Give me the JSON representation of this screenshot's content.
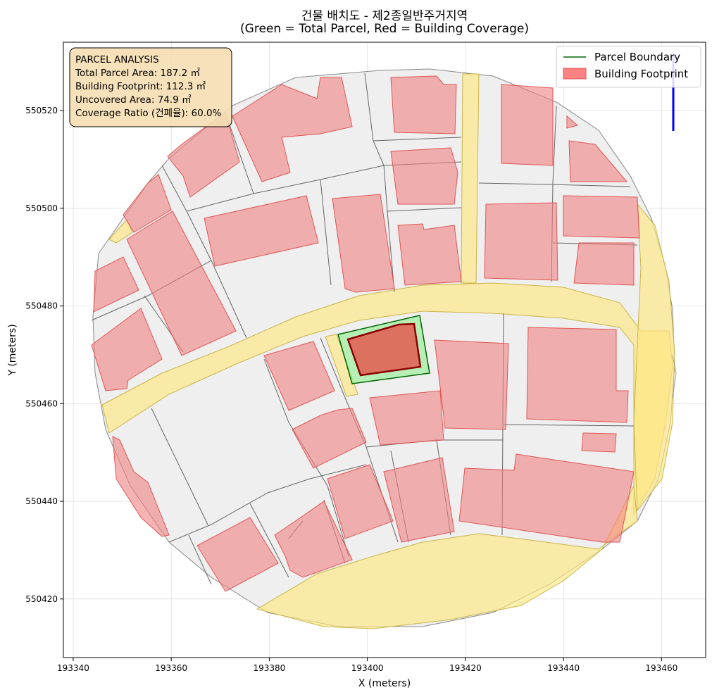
{
  "title_line1": "건물 배치도 - 제2종일반주거지역",
  "title_line2": "(Green = Total Parcel, Red = Building Coverage)",
  "xlabel": "X (meters)",
  "ylabel": "Y (meters)",
  "x_ticks": [
    "193340",
    "193360",
    "193380",
    "193400",
    "193420",
    "193440",
    "193460"
  ],
  "y_ticks": [
    "550520",
    "550500",
    "550480",
    "550460",
    "550440",
    "550420"
  ],
  "info_box": {
    "heading": "PARCEL ANALYSIS",
    "total_area": "Total Parcel Area: 187.2 ㎡",
    "footprint": "Building Footprint: 112.3 ㎡",
    "uncovered": "Uncovered Area: 74.9 ㎡",
    "coverage": "Coverage Ratio (건폐율): 60.0%"
  },
  "legend": {
    "parcel_label": "Parcel Boundary",
    "building_label": "Building Footprint"
  },
  "colors": {
    "parcel_edge": "#006400",
    "parcel_fill": "#90ee90",
    "building_fill": "#ff6b6b",
    "road": "#ffe680",
    "lot_fill": "#eeeeee",
    "infobox_bg": "#f5deb3",
    "north_arrow": "#0000ff"
  },
  "chart_data": {
    "type": "map",
    "xlim": [
      193338,
      193469
    ],
    "ylim": [
      550408,
      550534
    ],
    "grid": true,
    "legend_placement": "top-right",
    "info_box_placement": "top-left",
    "subject_parcel": {
      "total_area_m2": 187.2,
      "building_footprint_m2": 112.3,
      "uncovered_area_m2": 74.9,
      "coverage_ratio_pct": 60.0
    }
  }
}
